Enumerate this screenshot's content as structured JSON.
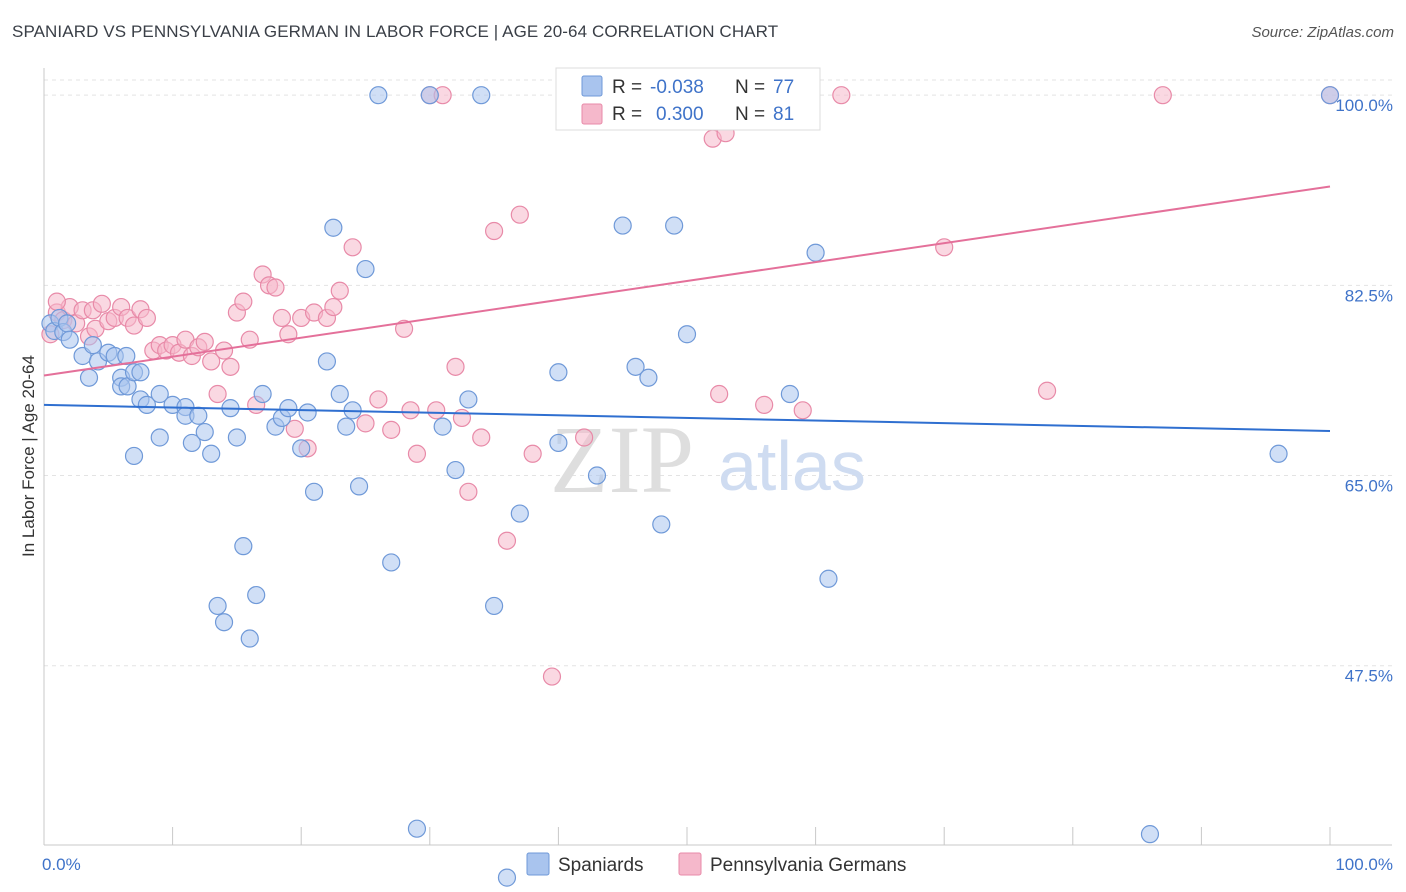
{
  "header": {
    "title": "SPANIARD VS PENNSYLVANIA GERMAN IN LABOR FORCE | AGE 20-64 CORRELATION CHART",
    "source": "Source: ZipAtlas.com"
  },
  "legend_box": {
    "rows": [
      {
        "r_label": "R =",
        "r_value": "-0.038",
        "n_label": "N =",
        "n_value": "77"
      },
      {
        "r_label": "R =",
        "r_value": "0.300",
        "n_label": "N =",
        "n_value": "81"
      }
    ]
  },
  "bottom_legend": [
    "Spaniards",
    "Pennsylvania Germans"
  ],
  "colors": {
    "blue_fill": "#a9c4ee",
    "blue_stroke": "#6f99d8",
    "blue_line": "#2f6fd0",
    "pink_fill": "#f5b8cb",
    "pink_stroke": "#e88aa8",
    "pink_line": "#e4709a",
    "tick_text": "#3f73c9"
  },
  "watermark": {
    "zip": "ZIP",
    "atlas": "atlas"
  },
  "chart_data": {
    "type": "scatter",
    "title": "SPANIARD VS PENNSYLVANIA GERMAN IN LABOR FORCE | AGE 20-64 CORRELATION CHART",
    "xlabel": "",
    "ylabel": "In Labor Force | Age 20-64",
    "xlim": [
      0,
      100
    ],
    "ylim": [
      31,
      102.5
    ],
    "x_tick_labels": [
      {
        "value": 0,
        "label": "0.0%"
      },
      {
        "value": 100,
        "label": "100.0%"
      }
    ],
    "y_tick_labels": [
      {
        "value": 100,
        "label": "100.0%"
      },
      {
        "value": 82.5,
        "label": "82.5%"
      },
      {
        "value": 65,
        "label": "65.0%"
      },
      {
        "value": 47.5,
        "label": "47.5%"
      }
    ],
    "legend_placement": "top-center",
    "grid": true,
    "series": [
      {
        "name": "Spaniards",
        "r": -0.038,
        "n": 77,
        "trend": {
          "x": [
            0,
            100
          ],
          "y": [
            71.5,
            69.1
          ]
        },
        "points": [
          [
            0.5,
            79
          ],
          [
            0.8,
            78.3
          ],
          [
            1.2,
            79.5
          ],
          [
            1.5,
            78.2
          ],
          [
            1.8,
            79
          ],
          [
            2,
            77.5
          ],
          [
            3,
            76
          ],
          [
            3.5,
            74
          ],
          [
            3.8,
            77
          ],
          [
            4.2,
            75.5
          ],
          [
            5,
            76.3
          ],
          [
            5.5,
            76
          ],
          [
            6,
            74
          ],
          [
            6,
            73.2
          ],
          [
            6.4,
            76
          ],
          [
            6.5,
            73.2
          ],
          [
            7,
            74.5
          ],
          [
            7,
            66.8
          ],
          [
            7.5,
            74.5
          ],
          [
            7.5,
            72
          ],
          [
            8,
            71.5
          ],
          [
            9,
            72.5
          ],
          [
            9,
            68.5
          ],
          [
            10,
            71.5
          ],
          [
            11,
            71.3
          ],
          [
            11,
            70.5
          ],
          [
            11.5,
            68
          ],
          [
            12,
            70.5
          ],
          [
            12.5,
            69
          ],
          [
            13,
            67
          ],
          [
            13.5,
            53
          ],
          [
            14,
            51.5
          ],
          [
            14.5,
            71.2
          ],
          [
            15,
            68.5
          ],
          [
            15.5,
            58.5
          ],
          [
            16,
            50
          ],
          [
            16.5,
            54
          ],
          [
            17,
            72.5
          ],
          [
            18,
            69.5
          ],
          [
            18.5,
            70.3
          ],
          [
            19,
            71.2
          ],
          [
            20,
            67.5
          ],
          [
            20.5,
            70.8
          ],
          [
            21,
            63.5
          ],
          [
            22,
            75.5
          ],
          [
            22.5,
            87.8
          ],
          [
            23,
            72.5
          ],
          [
            23.5,
            69.5
          ],
          [
            24,
            71
          ],
          [
            24.5,
            64
          ],
          [
            25,
            84
          ],
          [
            26,
            100
          ],
          [
            27,
            57
          ],
          [
            29,
            32.5
          ],
          [
            30,
            100
          ],
          [
            31,
            69.5
          ],
          [
            32,
            65.5
          ],
          [
            33,
            72
          ],
          [
            34,
            100
          ],
          [
            35,
            53
          ],
          [
            36,
            28
          ],
          [
            37,
            61.5
          ],
          [
            40,
            74.5
          ],
          [
            40,
            68
          ],
          [
            43,
            65
          ],
          [
            45,
            88
          ],
          [
            46,
            75
          ],
          [
            47,
            74
          ],
          [
            48,
            60.5
          ],
          [
            49,
            88
          ],
          [
            50,
            78
          ],
          [
            58,
            72.5
          ],
          [
            60,
            85.5
          ],
          [
            61,
            55.5
          ],
          [
            86,
            32
          ],
          [
            96,
            67
          ],
          [
            100,
            100
          ]
        ]
      },
      {
        "name": "Pennsylvania Germans",
        "r": 0.3,
        "n": 81,
        "trend": {
          "x": [
            0,
            100
          ],
          "y": [
            74.2,
            91.6
          ]
        },
        "points": [
          [
            0.5,
            78
          ],
          [
            1,
            80
          ],
          [
            1.5,
            79.3
          ],
          [
            2,
            80.5
          ],
          [
            2.5,
            79
          ],
          [
            3,
            80.2
          ],
          [
            3.5,
            77.8
          ],
          [
            3.8,
            80.2
          ],
          [
            4,
            78.5
          ],
          [
            4.5,
            80.8
          ],
          [
            5,
            79.2
          ],
          [
            5.5,
            79.5
          ],
          [
            6,
            80.5
          ],
          [
            6.5,
            79.5
          ],
          [
            7,
            78.8
          ],
          [
            7.5,
            80.3
          ],
          [
            8,
            79.5
          ],
          [
            8.5,
            76.5
          ],
          [
            9,
            77
          ],
          [
            9.5,
            76.5
          ],
          [
            10,
            77
          ],
          [
            10.5,
            76.3
          ],
          [
            11,
            77.5
          ],
          [
            11.5,
            76
          ],
          [
            12,
            76.8
          ],
          [
            12.5,
            77.3
          ],
          [
            13,
            75.5
          ],
          [
            13.5,
            72.5
          ],
          [
            14,
            76.5
          ],
          [
            14.5,
            75
          ],
          [
            15,
            80
          ],
          [
            15.5,
            81
          ],
          [
            16,
            77.5
          ],
          [
            16.5,
            71.5
          ],
          [
            17,
            83.5
          ],
          [
            17.5,
            82.5
          ],
          [
            18,
            82.3
          ],
          [
            18.5,
            79.5
          ],
          [
            19,
            78
          ],
          [
            19.5,
            69.3
          ],
          [
            20,
            79.5
          ],
          [
            20.5,
            67.5
          ],
          [
            21,
            80
          ],
          [
            22,
            79.5
          ],
          [
            22.5,
            80.5
          ],
          [
            23,
            82
          ],
          [
            24,
            86
          ],
          [
            25,
            69.8
          ],
          [
            26,
            72
          ],
          [
            27,
            69.2
          ],
          [
            28,
            78.5
          ],
          [
            28.5,
            71
          ],
          [
            29,
            67
          ],
          [
            30,
            100
          ],
          [
            30.5,
            71
          ],
          [
            31,
            100
          ],
          [
            32,
            75
          ],
          [
            32.5,
            70.3
          ],
          [
            33,
            63.5
          ],
          [
            34,
            68.5
          ],
          [
            35,
            87.5
          ],
          [
            36,
            59
          ],
          [
            37,
            89
          ],
          [
            38,
            67
          ],
          [
            39.5,
            46.5
          ],
          [
            42,
            68.5
          ],
          [
            44.5,
            100
          ],
          [
            46,
            100
          ],
          [
            47.5,
            100
          ],
          [
            50,
            98
          ],
          [
            52,
            96
          ],
          [
            52.5,
            72.5
          ],
          [
            53,
            96.5
          ],
          [
            56,
            71.5
          ],
          [
            59,
            71
          ],
          [
            62,
            100
          ],
          [
            70,
            86
          ],
          [
            78,
            72.8
          ],
          [
            87,
            100
          ],
          [
            100,
            100
          ],
          [
            1,
            81
          ]
        ]
      }
    ]
  }
}
